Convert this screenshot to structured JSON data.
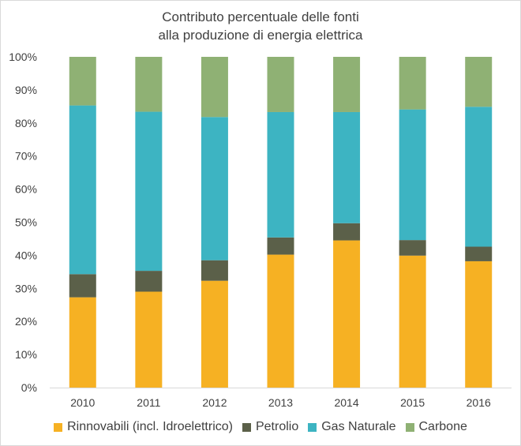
{
  "chart_data": {
    "type": "bar",
    "stacked": true,
    "title_lines": [
      "Contributo percentuale delle fonti",
      "alla produzione di energia elettrica"
    ],
    "categories": [
      "2010",
      "2011",
      "2012",
      "2013",
      "2014",
      "2015",
      "2016"
    ],
    "series": [
      {
        "name": "Rinnovabili (incl. Idroelettrico)",
        "color": "#f6b123",
        "values": [
          27.3,
          29.0,
          32.3,
          40.2,
          44.5,
          39.9,
          38.2
        ]
      },
      {
        "name": "Petrolio",
        "color": "#5b6049",
        "values": [
          7.0,
          6.3,
          6.2,
          5.2,
          5.2,
          4.7,
          4.4
        ]
      },
      {
        "name": "Gas Naturale",
        "color": "#3db4c2",
        "values": [
          51.0,
          48.1,
          43.3,
          37.9,
          33.6,
          39.5,
          42.3
        ]
      },
      {
        "name": "Carbone",
        "color": "#8fb174",
        "values": [
          14.7,
          16.6,
          18.2,
          16.7,
          16.7,
          15.9,
          15.1
        ]
      }
    ],
    "yticks": [
      "0%",
      "10%",
      "20%",
      "30%",
      "40%",
      "50%",
      "60%",
      "70%",
      "80%",
      "90%",
      "100%"
    ],
    "ylim": [
      0,
      100
    ],
    "xlabel": "",
    "ylabel": "",
    "grid": false,
    "legend_position": "bottom"
  }
}
